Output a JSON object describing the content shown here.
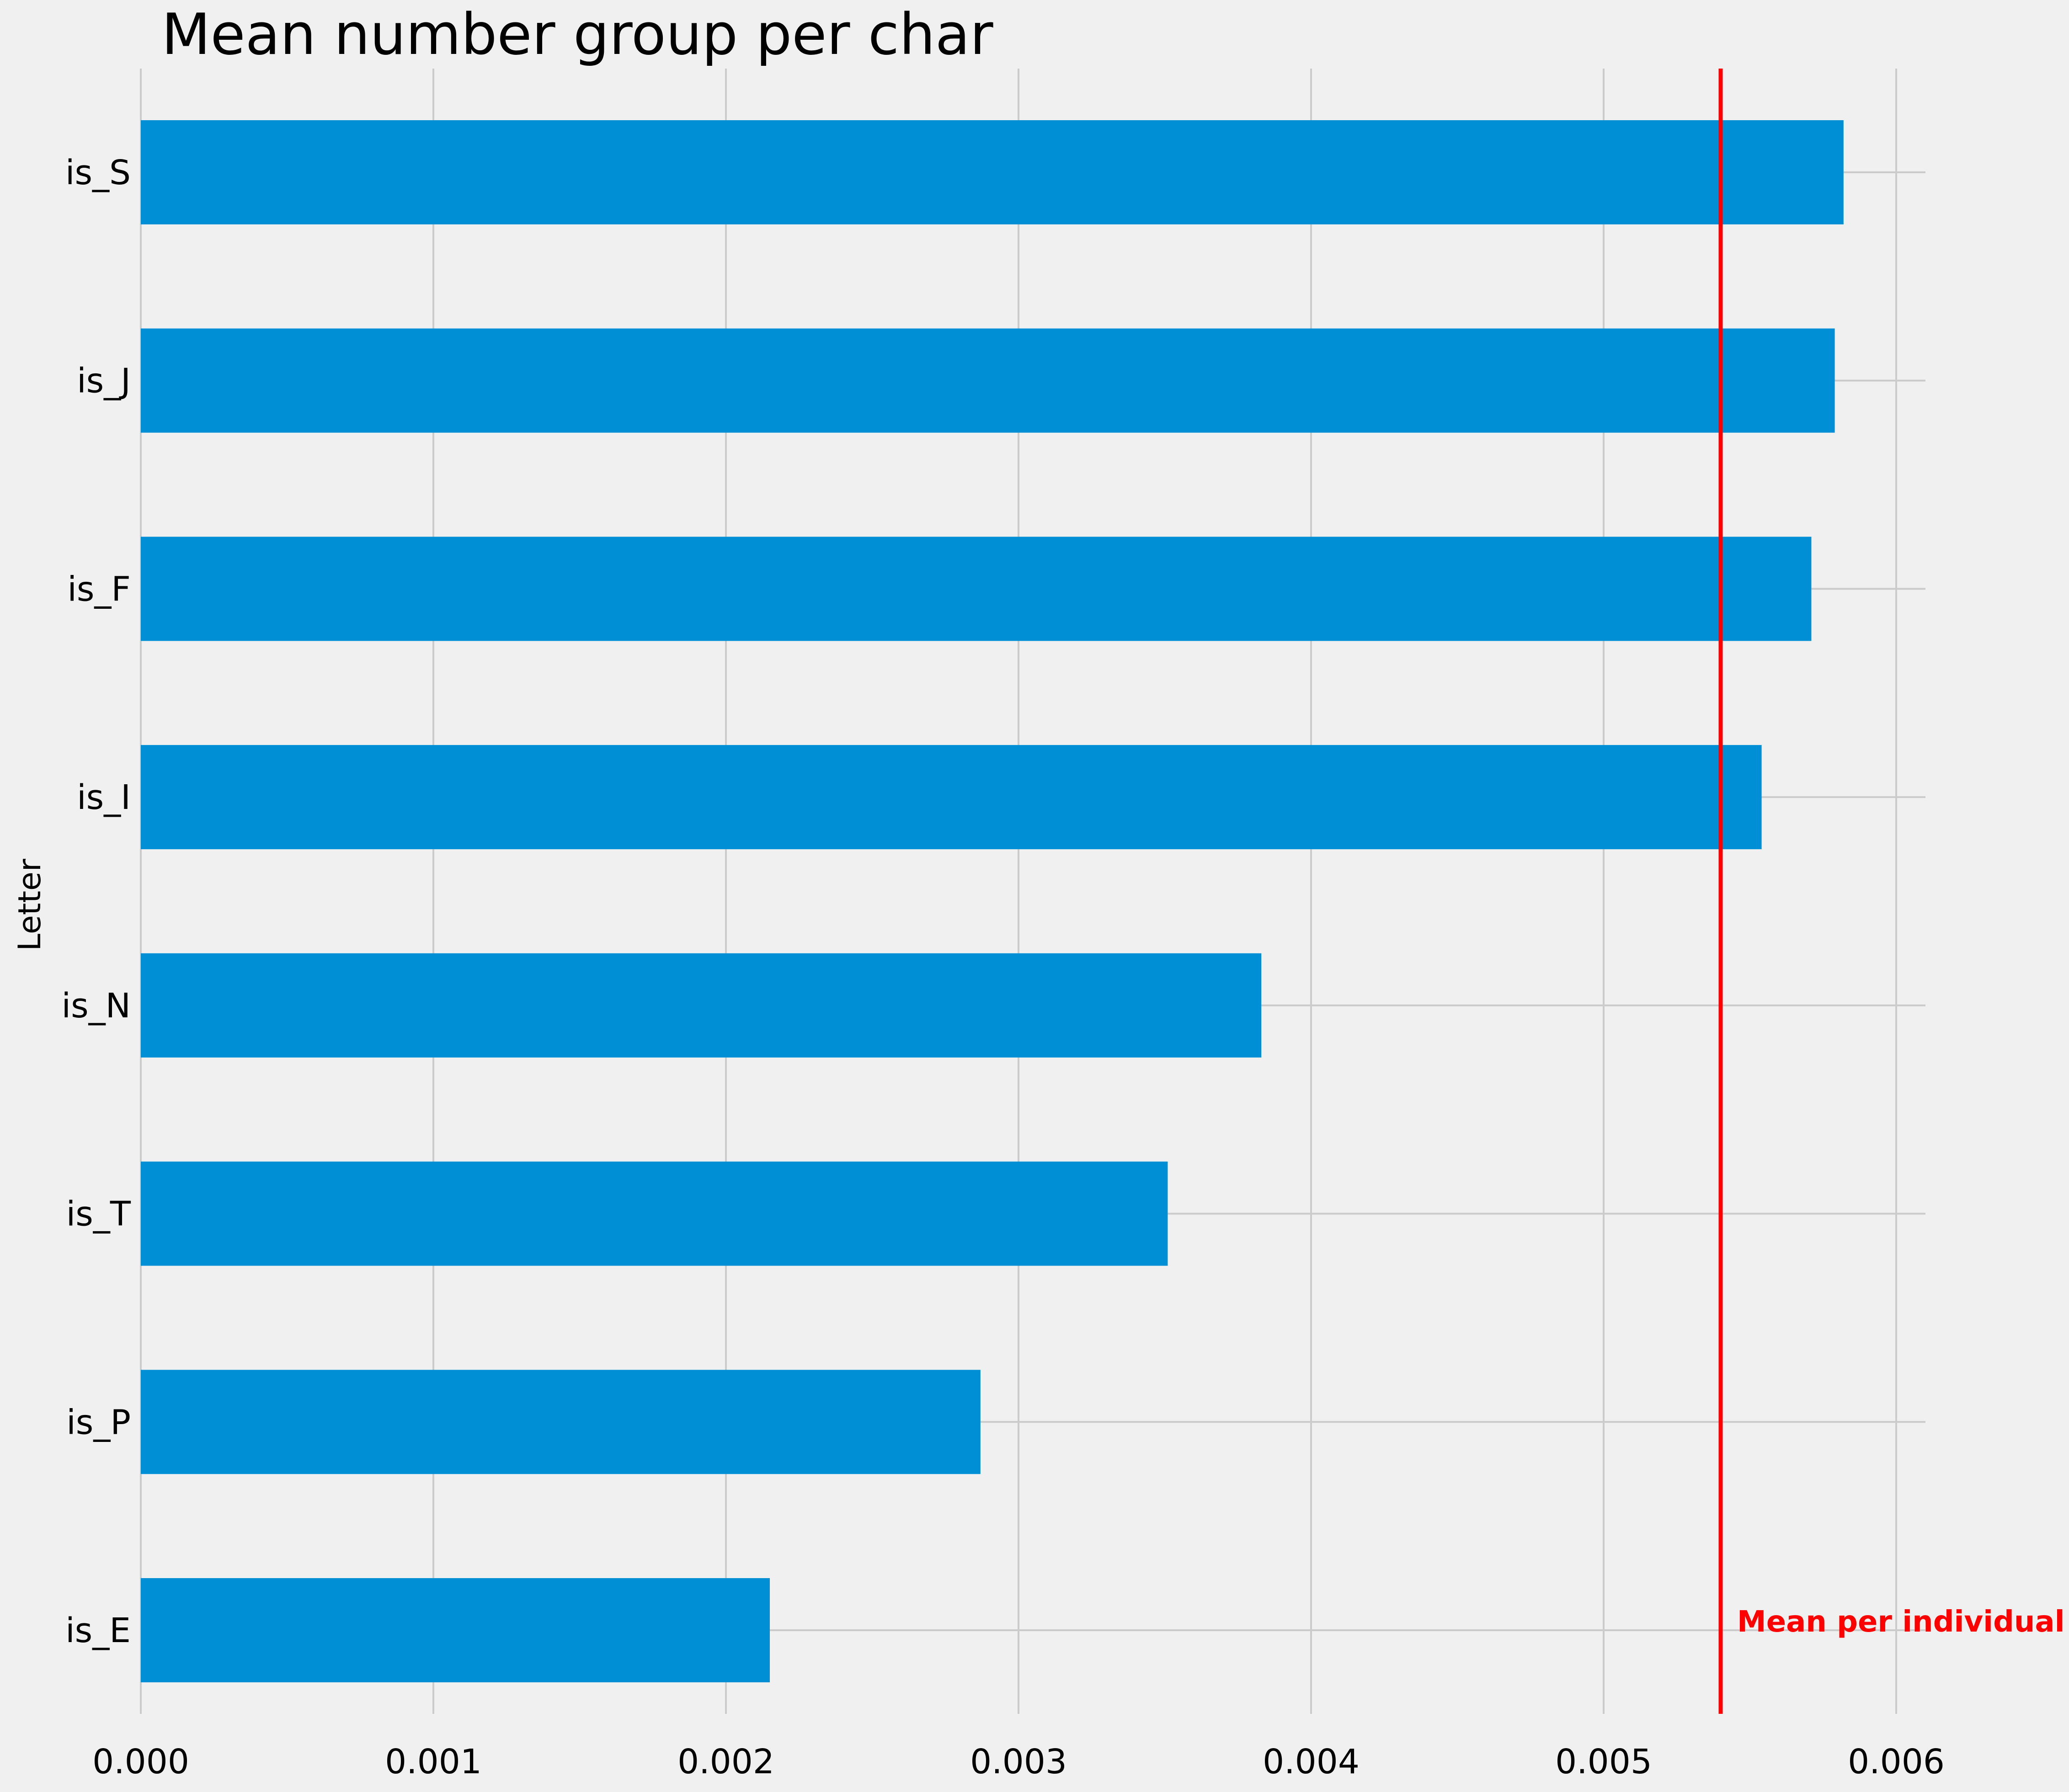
{
  "chart_data": {
    "type": "bar",
    "orientation": "horizontal",
    "title": "Mean number group per char",
    "ylabel": "Letter",
    "xlabel": "",
    "categories": [
      "is_S",
      "is_J",
      "is_F",
      "is_I",
      "is_N",
      "is_T",
      "is_P",
      "is_E"
    ],
    "values": [
      0.00582,
      0.00579,
      0.00571,
      0.00554,
      0.00383,
      0.00351,
      0.00287,
      0.00215
    ],
    "xlim": [
      0,
      0.0061
    ],
    "xticks": [
      0,
      0.001,
      0.002,
      0.003,
      0.004,
      0.005,
      0.006
    ],
    "xtick_labels": [
      "0.000",
      "0.001",
      "0.002",
      "0.003",
      "0.004",
      "0.005",
      "0.006"
    ],
    "grid": true,
    "bar_color": "#008fd5",
    "reference_line": {
      "value": 0.0054,
      "label": "Mean per individual",
      "color": "#ff0000"
    }
  }
}
